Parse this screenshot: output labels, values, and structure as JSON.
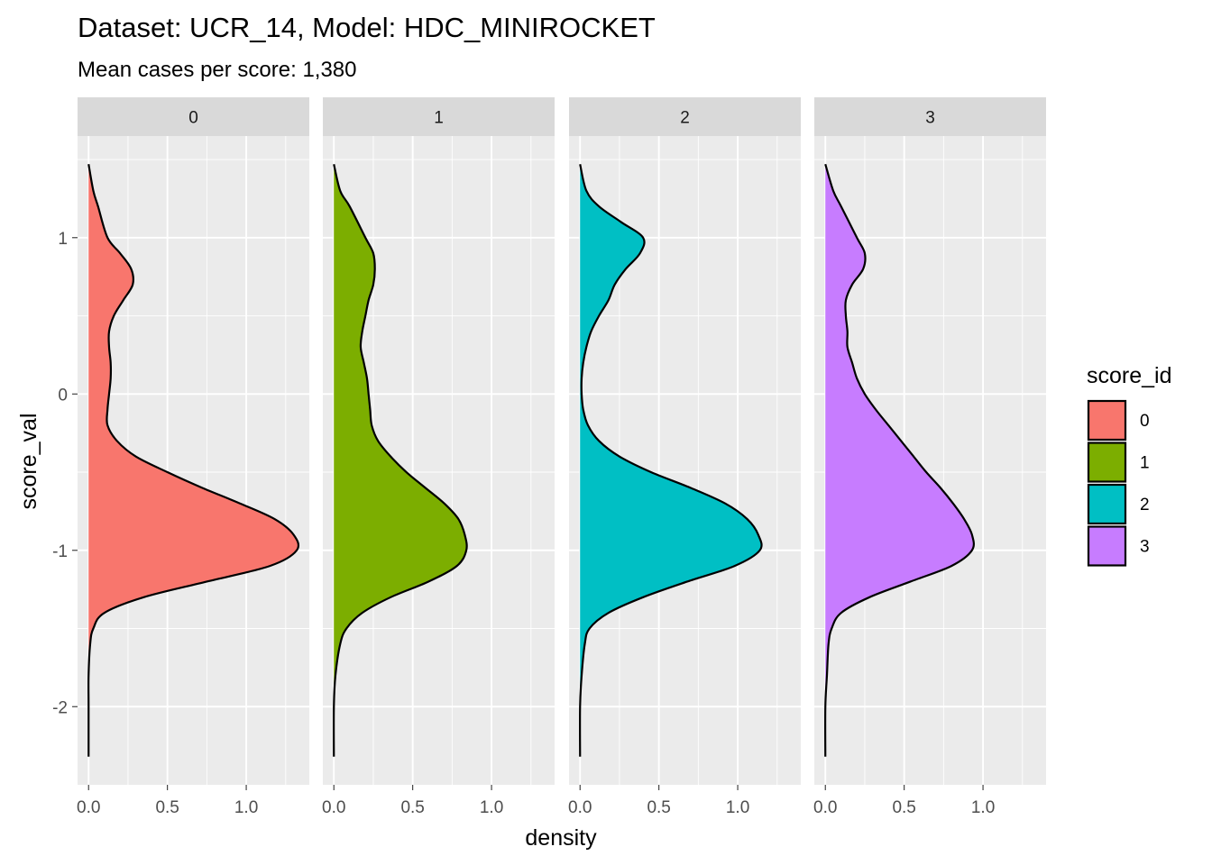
{
  "chart_data": {
    "type": "area",
    "title": "Dataset: UCR_14, Model: HDC_MINIROCKET",
    "subtitle": "Mean cases per score: 1,380",
    "xlabel": "density",
    "ylabel": "score_val",
    "xlim": [
      -0.07,
      1.4
    ],
    "ylim": [
      -2.5,
      1.65
    ],
    "x_ticks": [
      0.0,
      0.5,
      1.0
    ],
    "x_tick_labels": [
      "0.0",
      "0.5",
      "1.0"
    ],
    "y_ticks": [
      1,
      0,
      -1,
      -2
    ],
    "y_tick_labels": [
      "1",
      "0",
      "-1",
      "-2"
    ],
    "grid": true,
    "legend": {
      "title": "score_id",
      "position": "right"
    },
    "panels": [
      {
        "strip": "0",
        "color": "#F8766D",
        "y": [
          1.47,
          1.3,
          1.2,
          1.0,
          0.9,
          0.8,
          0.7,
          0.6,
          0.5,
          0.4,
          0.3,
          0.2,
          0.1,
          0.0,
          -0.1,
          -0.2,
          -0.3,
          -0.4,
          -0.5,
          -0.6,
          -0.7,
          -0.8,
          -0.9,
          -1.0,
          -1.1,
          -1.2,
          -1.3,
          -1.4,
          -1.5,
          -1.6,
          -1.8,
          -2.0,
          -2.32
        ],
        "density": [
          0.0,
          0.03,
          0.06,
          0.12,
          0.2,
          0.27,
          0.28,
          0.22,
          0.16,
          0.13,
          0.13,
          0.14,
          0.14,
          0.13,
          0.12,
          0.12,
          0.18,
          0.3,
          0.5,
          0.72,
          0.96,
          1.18,
          1.3,
          1.32,
          1.15,
          0.75,
          0.35,
          0.1,
          0.03,
          0.01,
          0.0,
          0.0,
          0.0
        ]
      },
      {
        "strip": "1",
        "color": "#7CAE00",
        "y": [
          1.47,
          1.3,
          1.2,
          1.0,
          0.9,
          0.8,
          0.7,
          0.6,
          0.5,
          0.4,
          0.3,
          0.2,
          0.1,
          0.0,
          -0.1,
          -0.2,
          -0.3,
          -0.4,
          -0.5,
          -0.6,
          -0.7,
          -0.8,
          -0.9,
          -1.0,
          -1.1,
          -1.2,
          -1.3,
          -1.4,
          -1.5,
          -1.6,
          -1.8,
          -2.0,
          -2.32
        ],
        "density": [
          0.0,
          0.04,
          0.1,
          0.2,
          0.25,
          0.26,
          0.25,
          0.22,
          0.2,
          0.18,
          0.17,
          0.19,
          0.21,
          0.22,
          0.23,
          0.24,
          0.28,
          0.36,
          0.46,
          0.58,
          0.7,
          0.79,
          0.83,
          0.84,
          0.78,
          0.6,
          0.36,
          0.18,
          0.08,
          0.04,
          0.01,
          0.0,
          0.0
        ]
      },
      {
        "strip": "2",
        "color": "#00BFC4",
        "y": [
          1.47,
          1.3,
          1.2,
          1.1,
          1.0,
          0.9,
          0.8,
          0.7,
          0.6,
          0.5,
          0.4,
          0.3,
          0.2,
          0.1,
          0.0,
          -0.1,
          -0.2,
          -0.3,
          -0.4,
          -0.5,
          -0.6,
          -0.7,
          -0.8,
          -0.9,
          -1.0,
          -1.1,
          -1.2,
          -1.3,
          -1.4,
          -1.5,
          -1.6,
          -1.8,
          -2.0,
          -2.32
        ],
        "density": [
          0.0,
          0.04,
          0.12,
          0.26,
          0.4,
          0.38,
          0.29,
          0.22,
          0.18,
          0.12,
          0.07,
          0.04,
          0.02,
          0.01,
          0.01,
          0.02,
          0.05,
          0.12,
          0.25,
          0.45,
          0.7,
          0.92,
          1.06,
          1.13,
          1.14,
          0.98,
          0.68,
          0.4,
          0.18,
          0.06,
          0.03,
          0.01,
          0.0,
          0.0
        ]
      },
      {
        "strip": "3",
        "color": "#C77CFF",
        "y": [
          1.47,
          1.3,
          1.2,
          1.0,
          0.9,
          0.8,
          0.7,
          0.6,
          0.5,
          0.4,
          0.3,
          0.2,
          0.1,
          0.0,
          -0.1,
          -0.2,
          -0.3,
          -0.4,
          -0.5,
          -0.6,
          -0.7,
          -0.8,
          -0.9,
          -1.0,
          -1.1,
          -1.2,
          -1.3,
          -1.4,
          -1.5,
          -1.6,
          -1.8,
          -2.0,
          -2.32
        ],
        "density": [
          0.0,
          0.05,
          0.1,
          0.2,
          0.25,
          0.24,
          0.17,
          0.13,
          0.13,
          0.14,
          0.14,
          0.17,
          0.2,
          0.25,
          0.32,
          0.4,
          0.48,
          0.56,
          0.64,
          0.73,
          0.81,
          0.88,
          0.93,
          0.93,
          0.8,
          0.54,
          0.28,
          0.1,
          0.04,
          0.02,
          0.01,
          0.0,
          0.0
        ]
      }
    ]
  }
}
